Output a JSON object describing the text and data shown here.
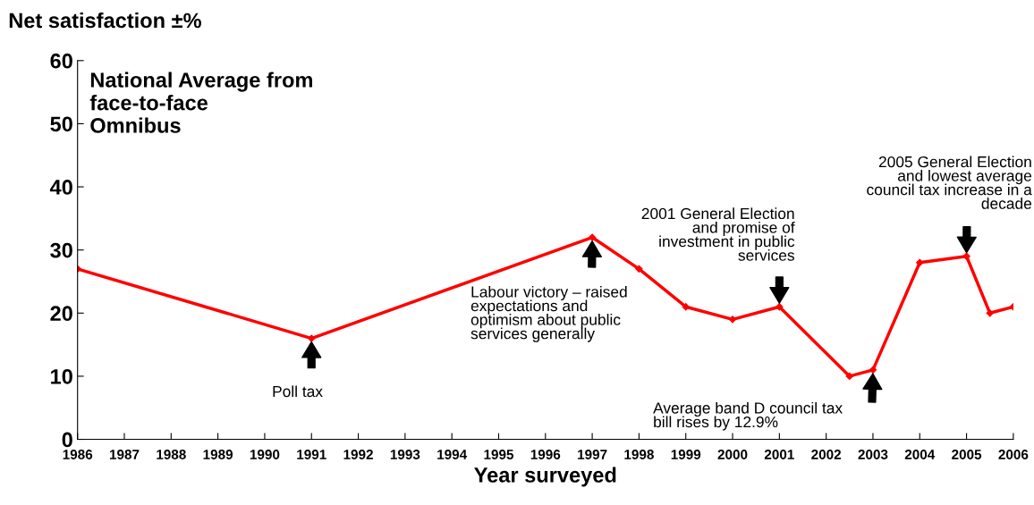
{
  "chart_data": {
    "type": "line",
    "title": "National Average from\nface-to-face\nOmnibus",
    "ylabel": "Net satisfaction ±%",
    "xlabel": "Year surveyed",
    "x": [
      1986,
      1991,
      1997,
      1998,
      1999,
      2000,
      2001,
      2002.5,
      2003,
      2004,
      2005,
      2005.5,
      2006
    ],
    "series": [
      {
        "color": "#ff0000",
        "values": [
          27,
          16,
          32,
          27,
          21,
          19,
          21,
          10,
          11,
          28,
          29,
          20,
          21
        ]
      }
    ],
    "xlim": [
      1986,
      2006
    ],
    "xticks": [
      1986,
      1987,
      1988,
      1989,
      1990,
      1991,
      1992,
      1993,
      1994,
      1995,
      1996,
      1997,
      1998,
      1999,
      2000,
      2001,
      2002,
      2003,
      2004,
      2005,
      2006
    ],
    "ylim": [
      0,
      60
    ],
    "yticks": [
      0,
      10,
      20,
      30,
      40,
      50,
      60
    ],
    "grid": false,
    "legend": false,
    "marker": "diamond",
    "line_style": "solid",
    "annotations": [
      "Poll tax",
      "Labour victory – raised\nexpectations and\noptimism about public\nservices generally",
      {
        "text": "2001 General Election\nand promise of\ninvestment in public\nservices",
        "x": 2001,
        "y": 21
      },
      {
        "text": "Average band D council tax\nbill rises by 12.9%",
        "x": 2003,
        "y": 11
      },
      "2005 General Election\nand lowest average\ncouncil tax increase in a\ndecade"
    ]
  }
}
